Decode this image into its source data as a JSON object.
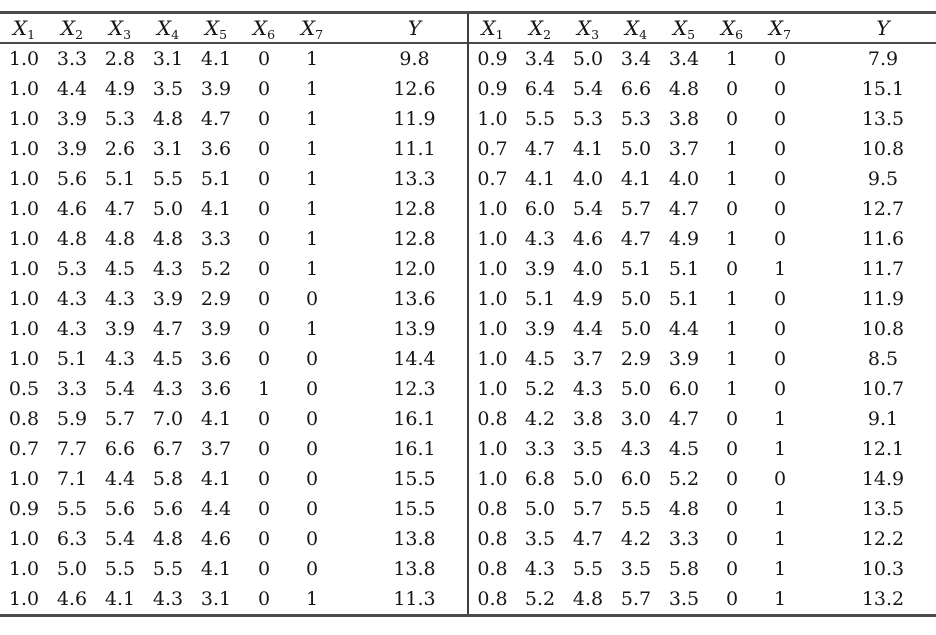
{
  "page": {
    "background_color": "#ffffff",
    "text_color": "#161616",
    "rule_color": "#4b4b4b"
  },
  "table": {
    "column_headers": [
      {
        "base": "X",
        "sub": "1"
      },
      {
        "base": "X",
        "sub": "2"
      },
      {
        "base": "X",
        "sub": "3"
      },
      {
        "base": "X",
        "sub": "4"
      },
      {
        "base": "X",
        "sub": "5"
      },
      {
        "base": "X",
        "sub": "6"
      },
      {
        "base": "X",
        "sub": "7"
      },
      {
        "base": "Y",
        "sub": ""
      }
    ],
    "left_rows": [
      [
        "1.0",
        "3.3",
        "2.8",
        "3.1",
        "4.1",
        "0",
        "1",
        "9.8"
      ],
      [
        "1.0",
        "4.4",
        "4.9",
        "3.5",
        "3.9",
        "0",
        "1",
        "12.6"
      ],
      [
        "1.0",
        "3.9",
        "5.3",
        "4.8",
        "4.7",
        "0",
        "1",
        "11.9"
      ],
      [
        "1.0",
        "3.9",
        "2.6",
        "3.1",
        "3.6",
        "0",
        "1",
        "11.1"
      ],
      [
        "1.0",
        "5.6",
        "5.1",
        "5.5",
        "5.1",
        "0",
        "1",
        "13.3"
      ],
      [
        "1.0",
        "4.6",
        "4.7",
        "5.0",
        "4.1",
        "0",
        "1",
        "12.8"
      ],
      [
        "1.0",
        "4.8",
        "4.8",
        "4.8",
        "3.3",
        "0",
        "1",
        "12.8"
      ],
      [
        "1.0",
        "5.3",
        "4.5",
        "4.3",
        "5.2",
        "0",
        "1",
        "12.0"
      ],
      [
        "1.0",
        "4.3",
        "4.3",
        "3.9",
        "2.9",
        "0",
        "0",
        "13.6"
      ],
      [
        "1.0",
        "4.3",
        "3.9",
        "4.7",
        "3.9",
        "0",
        "1",
        "13.9"
      ],
      [
        "1.0",
        "5.1",
        "4.3",
        "4.5",
        "3.6",
        "0",
        "0",
        "14.4"
      ],
      [
        "0.5",
        "3.3",
        "5.4",
        "4.3",
        "3.6",
        "1",
        "0",
        "12.3"
      ],
      [
        "0.8",
        "5.9",
        "5.7",
        "7.0",
        "4.1",
        "0",
        "0",
        "16.1"
      ],
      [
        "0.7",
        "7.7",
        "6.6",
        "6.7",
        "3.7",
        "0",
        "0",
        "16.1"
      ],
      [
        "1.0",
        "7.1",
        "4.4",
        "5.8",
        "4.1",
        "0",
        "0",
        "15.5"
      ],
      [
        "0.9",
        "5.5",
        "5.6",
        "5.6",
        "4.4",
        "0",
        "0",
        "15.5"
      ],
      [
        "1.0",
        "6.3",
        "5.4",
        "4.8",
        "4.6",
        "0",
        "0",
        "13.8"
      ],
      [
        "1.0",
        "5.0",
        "5.5",
        "5.5",
        "4.1",
        "0",
        "0",
        "13.8"
      ],
      [
        "1.0",
        "4.6",
        "4.1",
        "4.3",
        "3.1",
        "0",
        "1",
        "11.3"
      ]
    ],
    "right_rows": [
      [
        "0.9",
        "3.4",
        "5.0",
        "3.4",
        "3.4",
        "1",
        "0",
        "7.9"
      ],
      [
        "0.9",
        "6.4",
        "5.4",
        "6.6",
        "4.8",
        "0",
        "0",
        "15.1"
      ],
      [
        "1.0",
        "5.5",
        "5.3",
        "5.3",
        "3.8",
        "0",
        "0",
        "13.5"
      ],
      [
        "0.7",
        "4.7",
        "4.1",
        "5.0",
        "3.7",
        "1",
        "0",
        "10.8"
      ],
      [
        "0.7",
        "4.1",
        "4.0",
        "4.1",
        "4.0",
        "1",
        "0",
        "9.5"
      ],
      [
        "1.0",
        "6.0",
        "5.4",
        "5.7",
        "4.7",
        "0",
        "0",
        "12.7"
      ],
      [
        "1.0",
        "4.3",
        "4.6",
        "4.7",
        "4.9",
        "1",
        "0",
        "11.6"
      ],
      [
        "1.0",
        "3.9",
        "4.0",
        "5.1",
        "5.1",
        "0",
        "1",
        "11.7"
      ],
      [
        "1.0",
        "5.1",
        "4.9",
        "5.0",
        "5.1",
        "1",
        "0",
        "11.9"
      ],
      [
        "1.0",
        "3.9",
        "4.4",
        "5.0",
        "4.4",
        "1",
        "0",
        "10.8"
      ],
      [
        "1.0",
        "4.5",
        "3.7",
        "2.9",
        "3.9",
        "1",
        "0",
        "8.5"
      ],
      [
        "1.0",
        "5.2",
        "4.3",
        "5.0",
        "6.0",
        "1",
        "0",
        "10.7"
      ],
      [
        "0.8",
        "4.2",
        "3.8",
        "3.0",
        "4.7",
        "0",
        "1",
        "9.1"
      ],
      [
        "1.0",
        "3.3",
        "3.5",
        "4.3",
        "4.5",
        "0",
        "1",
        "12.1"
      ],
      [
        "1.0",
        "6.8",
        "5.0",
        "6.0",
        "5.2",
        "0",
        "0",
        "14.9"
      ],
      [
        "0.8",
        "5.0",
        "5.7",
        "5.5",
        "4.8",
        "0",
        "1",
        "13.5"
      ],
      [
        "0.8",
        "3.5",
        "4.7",
        "4.2",
        "3.3",
        "0",
        "1",
        "12.2"
      ],
      [
        "0.8",
        "4.3",
        "5.5",
        "3.5",
        "5.8",
        "0",
        "1",
        "10.3"
      ],
      [
        "0.8",
        "5.2",
        "4.8",
        "5.7",
        "3.5",
        "0",
        "1",
        "13.2"
      ]
    ]
  }
}
